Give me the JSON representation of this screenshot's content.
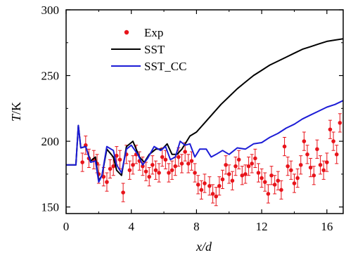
{
  "chart_data": {
    "type": "line",
    "xlabel": "x/d",
    "ylabel_var": "T",
    "ylabel_unit": "/K",
    "xlim": [
      0,
      17
    ],
    "ylim": [
      145,
      300
    ],
    "xticks": [
      0,
      4,
      8,
      12,
      16
    ],
    "yticks": [
      150,
      200,
      250,
      300
    ],
    "grid": false,
    "legend_position": "top-left",
    "series": [
      {
        "name": "Exp",
        "kind": "errorbar",
        "color": "#e8141b",
        "points": [
          {
            "x": 1.0,
            "y": 184,
            "err": 7
          },
          {
            "x": 1.2,
            "y": 197,
            "err": 7
          },
          {
            "x": 1.4,
            "y": 187,
            "err": 7
          },
          {
            "x": 1.7,
            "y": 186,
            "err": 7
          },
          {
            "x": 1.9,
            "y": 183,
            "err": 7
          },
          {
            "x": 2.0,
            "y": 175,
            "err": 7
          },
          {
            "x": 2.3,
            "y": 173,
            "err": 7
          },
          {
            "x": 2.5,
            "y": 169,
            "err": 7
          },
          {
            "x": 2.7,
            "y": 179,
            "err": 7
          },
          {
            "x": 2.9,
            "y": 181,
            "err": 7
          },
          {
            "x": 3.1,
            "y": 189,
            "err": 7
          },
          {
            "x": 3.3,
            "y": 186,
            "err": 7
          },
          {
            "x": 3.5,
            "y": 161,
            "err": 7
          },
          {
            "x": 3.7,
            "y": 190,
            "err": 7
          },
          {
            "x": 3.9,
            "y": 178,
            "err": 7
          },
          {
            "x": 4.1,
            "y": 182,
            "err": 7
          },
          {
            "x": 4.3,
            "y": 190,
            "err": 7
          },
          {
            "x": 4.5,
            "y": 185,
            "err": 7
          },
          {
            "x": 4.7,
            "y": 181,
            "err": 7
          },
          {
            "x": 4.9,
            "y": 177,
            "err": 7
          },
          {
            "x": 5.1,
            "y": 173,
            "err": 7
          },
          {
            "x": 5.3,
            "y": 182,
            "err": 7
          },
          {
            "x": 5.5,
            "y": 178,
            "err": 7
          },
          {
            "x": 5.7,
            "y": 176,
            "err": 7
          },
          {
            "x": 5.9,
            "y": 188,
            "err": 7
          },
          {
            "x": 6.1,
            "y": 186,
            "err": 7
          },
          {
            "x": 6.3,
            "y": 176,
            "err": 7
          },
          {
            "x": 6.5,
            "y": 178,
            "err": 7
          },
          {
            "x": 6.7,
            "y": 181,
            "err": 7
          },
          {
            "x": 6.9,
            "y": 188,
            "err": 7
          },
          {
            "x": 7.1,
            "y": 183,
            "err": 7
          },
          {
            "x": 7.3,
            "y": 192,
            "err": 7
          },
          {
            "x": 7.5,
            "y": 183,
            "err": 7
          },
          {
            "x": 7.7,
            "y": 185,
            "err": 7
          },
          {
            "x": 7.9,
            "y": 176,
            "err": 7
          },
          {
            "x": 8.1,
            "y": 167,
            "err": 7
          },
          {
            "x": 8.3,
            "y": 163,
            "err": 7
          },
          {
            "x": 8.5,
            "y": 168,
            "err": 7
          },
          {
            "x": 8.8,
            "y": 166,
            "err": 7
          },
          {
            "x": 9.0,
            "y": 160,
            "err": 7
          },
          {
            "x": 9.2,
            "y": 158,
            "err": 7
          },
          {
            "x": 9.4,
            "y": 166,
            "err": 7
          },
          {
            "x": 9.6,
            "y": 171,
            "err": 7
          },
          {
            "x": 9.8,
            "y": 182,
            "err": 7
          },
          {
            "x": 10.0,
            "y": 175,
            "err": 7
          },
          {
            "x": 10.2,
            "y": 170,
            "err": 7
          },
          {
            "x": 10.4,
            "y": 181,
            "err": 7
          },
          {
            "x": 10.6,
            "y": 186,
            "err": 7
          },
          {
            "x": 10.8,
            "y": 174,
            "err": 7
          },
          {
            "x": 11.0,
            "y": 175,
            "err": 7
          },
          {
            "x": 11.2,
            "y": 181,
            "err": 7
          },
          {
            "x": 11.4,
            "y": 183,
            "err": 7
          },
          {
            "x": 11.6,
            "y": 187,
            "err": 7
          },
          {
            "x": 11.8,
            "y": 176,
            "err": 7
          },
          {
            "x": 12.0,
            "y": 172,
            "err": 7
          },
          {
            "x": 12.2,
            "y": 169,
            "err": 7
          },
          {
            "x": 12.4,
            "y": 160,
            "err": 7
          },
          {
            "x": 12.6,
            "y": 174,
            "err": 7
          },
          {
            "x": 12.8,
            "y": 167,
            "err": 7
          },
          {
            "x": 13.0,
            "y": 170,
            "err": 7
          },
          {
            "x": 13.2,
            "y": 163,
            "err": 7
          },
          {
            "x": 13.4,
            "y": 196,
            "err": 7
          },
          {
            "x": 13.6,
            "y": 181,
            "err": 7
          },
          {
            "x": 13.8,
            "y": 178,
            "err": 7
          },
          {
            "x": 14.0,
            "y": 168,
            "err": 7
          },
          {
            "x": 14.2,
            "y": 172,
            "err": 7
          },
          {
            "x": 14.4,
            "y": 182,
            "err": 7
          },
          {
            "x": 14.6,
            "y": 200,
            "err": 7
          },
          {
            "x": 14.8,
            "y": 190,
            "err": 7
          },
          {
            "x": 15.0,
            "y": 180,
            "err": 7
          },
          {
            "x": 15.2,
            "y": 174,
            "err": 7
          },
          {
            "x": 15.4,
            "y": 194,
            "err": 7
          },
          {
            "x": 15.6,
            "y": 182,
            "err": 7
          },
          {
            "x": 15.8,
            "y": 178,
            "err": 7
          },
          {
            "x": 16.0,
            "y": 184,
            "err": 7
          },
          {
            "x": 16.2,
            "y": 209,
            "err": 7
          },
          {
            "x": 16.4,
            "y": 200,
            "err": 7
          },
          {
            "x": 16.6,
            "y": 190,
            "err": 7
          },
          {
            "x": 16.8,
            "y": 214,
            "err": 7
          }
        ]
      },
      {
        "name": "SST",
        "kind": "line",
        "color": "#000000",
        "points": [
          [
            0,
            182
          ],
          [
            0.6,
            182
          ],
          [
            0.75,
            212
          ],
          [
            0.9,
            195
          ],
          [
            1.2,
            196
          ],
          [
            1.5,
            185
          ],
          [
            1.8,
            188
          ],
          [
            2.0,
            170
          ],
          [
            2.2,
            174
          ],
          [
            2.5,
            194
          ],
          [
            2.9,
            188
          ],
          [
            3.1,
            178
          ],
          [
            3.4,
            174
          ],
          [
            3.7,
            196
          ],
          [
            4.1,
            200
          ],
          [
            4.5,
            188
          ],
          [
            4.8,
            184
          ],
          [
            5.1,
            190
          ],
          [
            5.5,
            194
          ],
          [
            5.9,
            194
          ],
          [
            6.2,
            198
          ],
          [
            6.5,
            190
          ],
          [
            6.8,
            190
          ],
          [
            7.1,
            194
          ],
          [
            7.4,
            200
          ],
          [
            7.6,
            204
          ],
          [
            8.0,
            207
          ],
          [
            8.5,
            214
          ],
          [
            9.0,
            221
          ],
          [
            9.5,
            228
          ],
          [
            10.0,
            234
          ],
          [
            10.5,
            240
          ],
          [
            11.0,
            245
          ],
          [
            11.5,
            250
          ],
          [
            12.0,
            254
          ],
          [
            12.5,
            258
          ],
          [
            13.0,
            261
          ],
          [
            13.5,
            264
          ],
          [
            14.0,
            267
          ],
          [
            14.5,
            270
          ],
          [
            15.0,
            272
          ],
          [
            15.5,
            274
          ],
          [
            16.0,
            276
          ],
          [
            16.5,
            277
          ],
          [
            17.0,
            278
          ]
        ]
      },
      {
        "name": "SST_CC",
        "kind": "line",
        "color": "#1c1cd6",
        "points": [
          [
            0,
            182
          ],
          [
            0.6,
            182
          ],
          [
            0.75,
            212
          ],
          [
            0.9,
            195
          ],
          [
            1.2,
            196
          ],
          [
            1.5,
            184
          ],
          [
            1.8,
            185
          ],
          [
            2.0,
            169
          ],
          [
            2.2,
            174
          ],
          [
            2.5,
            196
          ],
          [
            2.9,
            193
          ],
          [
            3.1,
            182
          ],
          [
            3.4,
            176
          ],
          [
            3.7,
            194
          ],
          [
            4.0,
            197
          ],
          [
            4.4,
            190
          ],
          [
            4.7,
            182
          ],
          [
            5.0,
            187
          ],
          [
            5.4,
            196
          ],
          [
            5.8,
            193
          ],
          [
            6.1,
            196
          ],
          [
            6.4,
            186
          ],
          [
            6.7,
            188
          ],
          [
            7.0,
            200
          ],
          [
            7.3,
            197
          ],
          [
            7.6,
            198
          ],
          [
            7.9,
            188
          ],
          [
            8.2,
            194
          ],
          [
            8.6,
            194
          ],
          [
            8.9,
            188
          ],
          [
            9.2,
            190
          ],
          [
            9.6,
            193
          ],
          [
            10.0,
            190
          ],
          [
            10.5,
            195
          ],
          [
            11.0,
            194
          ],
          [
            11.5,
            198
          ],
          [
            12.0,
            199
          ],
          [
            12.5,
            203
          ],
          [
            13.0,
            206
          ],
          [
            13.5,
            210
          ],
          [
            14.0,
            213
          ],
          [
            14.5,
            217
          ],
          [
            15.0,
            220
          ],
          [
            15.5,
            223
          ],
          [
            16.0,
            226
          ],
          [
            16.5,
            228
          ],
          [
            17.0,
            231
          ]
        ]
      }
    ]
  }
}
